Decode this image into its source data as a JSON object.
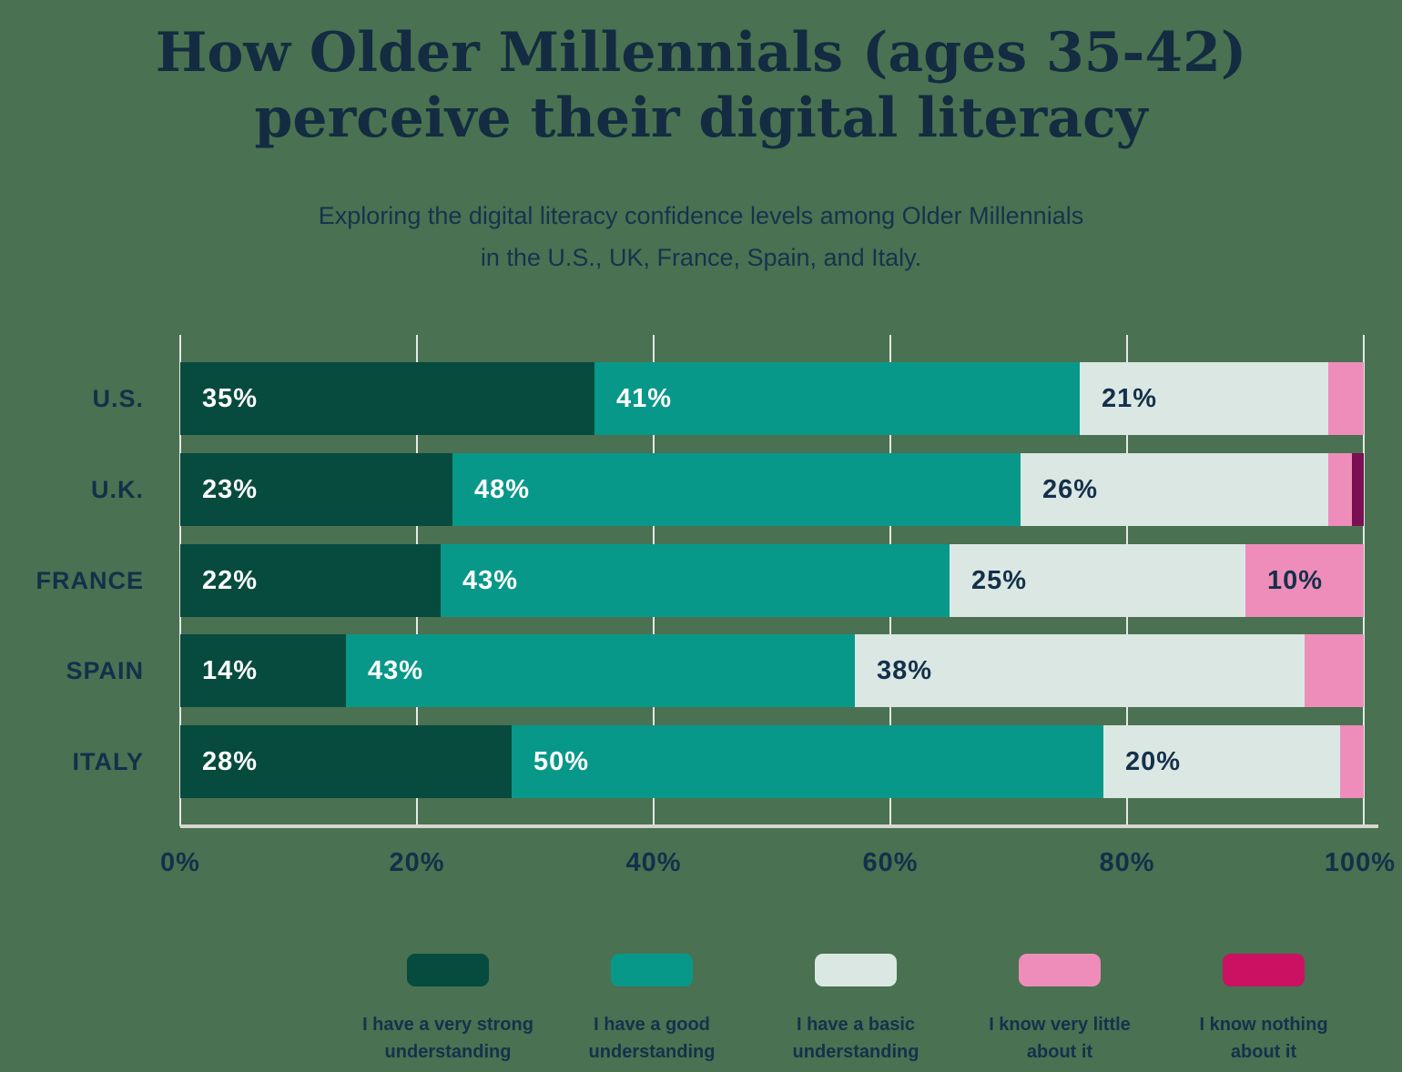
{
  "header": {
    "title_line1": "How Older Millennials (ages 35-42)",
    "title_line2": "perceive their digital literacy",
    "subtitle_line1": "Exploring the digital literacy confidence levels among Older Millennials",
    "subtitle_line2": "in the U.S., UK, France, Spain, and Italy."
  },
  "colors": {
    "background": "#4a7151",
    "title_text": "#132c41",
    "body_text": "#14304a",
    "very_strong": "#064b3e",
    "good": "#089889",
    "basic": "#dbe7e3",
    "very_little": "#ee8db9",
    "nothing_bar": "#7a1052",
    "nothing_legend": "#ca1162",
    "label_on_dark": "#ffffff",
    "label_on_light": "#14304a",
    "gridline": "rgba(255,255,255,0.85)",
    "axis_line": "#d9d6cf"
  },
  "chart_data": {
    "type": "bar",
    "orientation": "horizontal",
    "stacked": true,
    "title": "How Older Millennials (ages 35-42) perceive their digital literacy",
    "categories": [
      "U.S.",
      "U.K.",
      "FRANCE",
      "SPAIN",
      "ITALY"
    ],
    "series": [
      {
        "name": "I have a very strong understanding",
        "color": "#064b3e",
        "label_color": "#ffffff",
        "values": [
          35,
          23,
          22,
          14,
          28
        ]
      },
      {
        "name": "I have a good understanding",
        "color": "#089889",
        "label_color": "#ffffff",
        "values": [
          41,
          48,
          43,
          43,
          50
        ]
      },
      {
        "name": "I have a basic understanding",
        "color": "#dbe7e3",
        "label_color": "#14304a",
        "values": [
          21,
          26,
          25,
          38,
          20
        ]
      },
      {
        "name": "I know very little about it",
        "color": "#ee8db9",
        "label_color": "#14304a",
        "values": [
          3,
          2,
          10,
          5,
          2
        ]
      },
      {
        "name": "I know nothing about it",
        "color": "#7a1052",
        "label_color": "#ffffff",
        "values": [
          0,
          1,
          0,
          0,
          0
        ]
      }
    ],
    "value_suffix": "%",
    "bar_label_min_value": 10,
    "xlim": [
      0,
      100
    ],
    "x_ticks": [
      "0%",
      "20%",
      "40%",
      "60%",
      "80%",
      "100%"
    ],
    "grid": true,
    "legend_position": "bottom"
  },
  "legend": {
    "items": [
      {
        "line1": "I have a very strong",
        "line2": "understanding",
        "color": "#064b3e"
      },
      {
        "line1": "I have a good",
        "line2": "understanding",
        "color": "#089889"
      },
      {
        "line1": "I have a basic",
        "line2": "understanding",
        "color": "#dbe7e3"
      },
      {
        "line1": "I know very little",
        "line2": "about it",
        "color": "#ee8db9"
      },
      {
        "line1": "I know nothing",
        "line2": "about it",
        "color": "#ca1162"
      }
    ]
  }
}
